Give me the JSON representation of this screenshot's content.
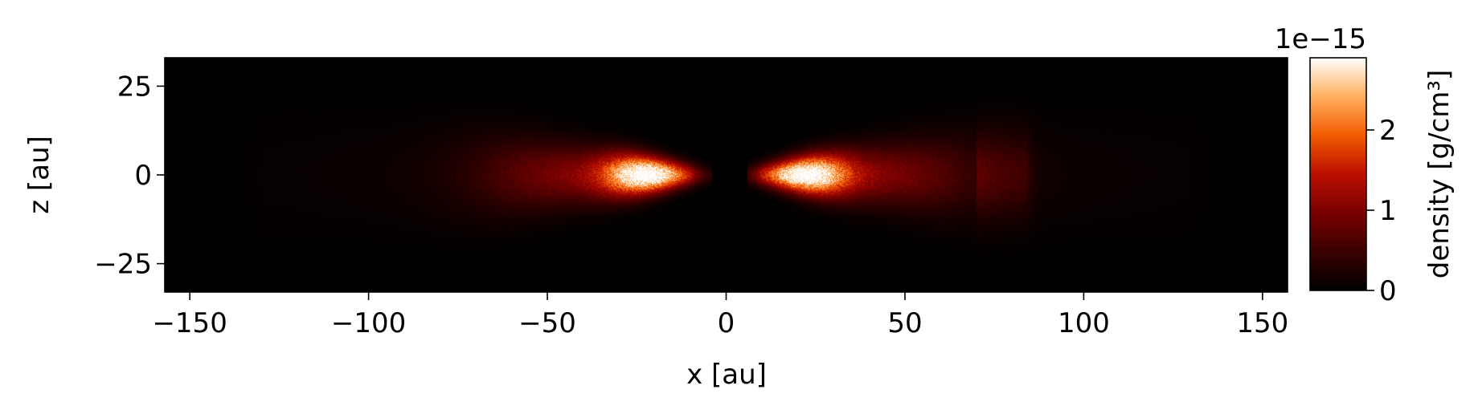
{
  "chart_data": {
    "type": "heatmap",
    "xlabel": "x [au]",
    "ylabel": "z [au]",
    "xlim": [
      -157,
      157
    ],
    "ylim": [
      -33,
      33
    ],
    "x_ticks": [
      -150,
      -100,
      -50,
      0,
      50,
      100,
      150
    ],
    "x_tick_labels": [
      "−150",
      "−100",
      "−50",
      "0",
      "50",
      "100",
      "150"
    ],
    "y_ticks": [
      -25,
      0,
      25
    ],
    "y_tick_labels": [
      "−25",
      "0",
      "25"
    ],
    "colorbar": {
      "label": "density [g/cm³]",
      "offset_text": "1e−15",
      "vmin": 0,
      "vmax": 2.9,
      "ticks": [
        0,
        1,
        2
      ],
      "tick_labels": [
        "0",
        "1",
        "2"
      ],
      "colormap": "gist_heat",
      "colormap_stops": [
        "#000000",
        "#3a0000",
        "#7a0000",
        "#bb0f00",
        "#f25a00",
        "#ffb060",
        "#ffffff"
      ]
    },
    "features": [
      {
        "structure": "gas disk (edge-on)",
        "x_range": [
          -135,
          135
        ],
        "z_half_thickness_at_edge": 9,
        "density_peak": 2.8,
        "inner_hole_x": [
          -4,
          6
        ]
      },
      {
        "structure": "outer shoulder",
        "x_range": [
          70,
          86
        ],
        "z_half_thickness": 10,
        "density": 0.45
      }
    ],
    "grid": false
  }
}
